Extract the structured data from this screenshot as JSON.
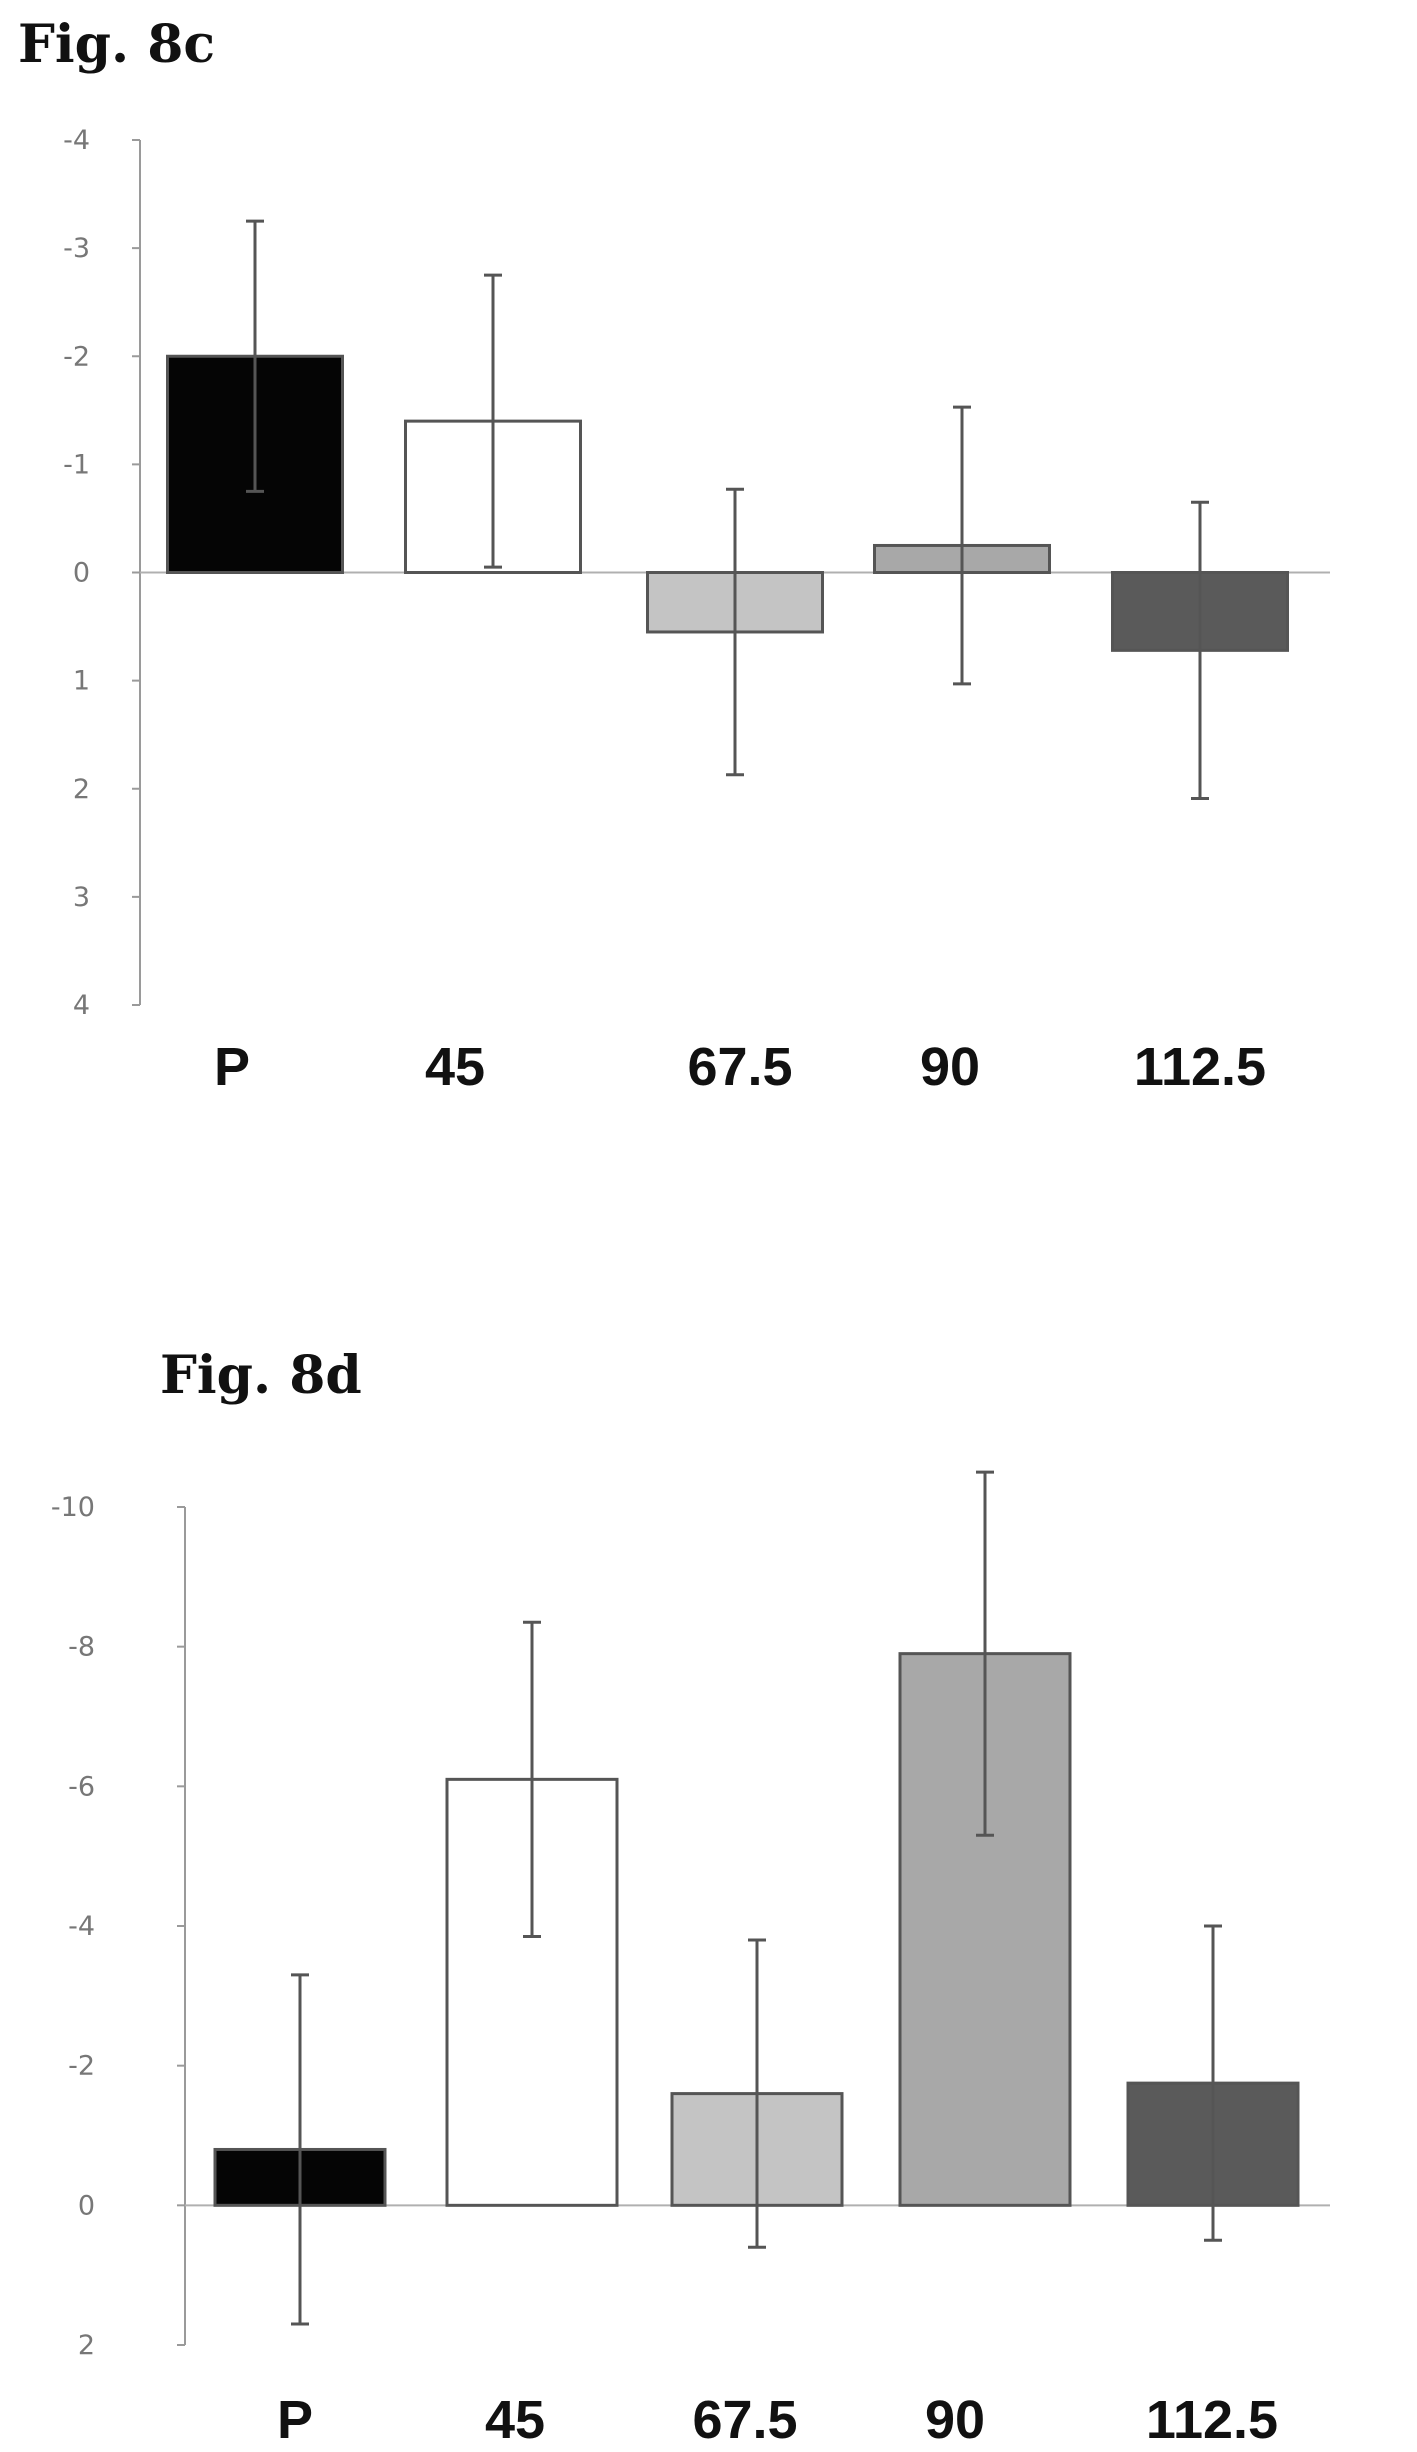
{
  "chart_data": [
    {
      "type": "bar",
      "title": "Fig. 8c",
      "categories": [
        "P",
        "45",
        "67.5",
        "90",
        "112.5"
      ],
      "values": [
        -2.0,
        -1.4,
        0.55,
        -0.25,
        0.72
      ],
      "error": [
        1.25,
        1.35,
        1.32,
        1.28,
        1.37
      ],
      "y_ticks": [
        "-4",
        "-3",
        "-2",
        "-1",
        "0",
        "1",
        "2",
        "3",
        "4"
      ],
      "ylim": [
        -4,
        4
      ],
      "y_inverted": true,
      "xlabel": "",
      "ylabel": "",
      "grid": false,
      "colors": [
        "#050505",
        "#ffffff",
        "#c4c4c4",
        "#a8a8a8",
        "#5a5a5a"
      ]
    },
    {
      "type": "bar",
      "title": "Fig. 8d",
      "categories": [
        "P",
        "45",
        "67.5",
        "90",
        "112.5"
      ],
      "values": [
        -0.8,
        -6.1,
        -1.6,
        -7.9,
        -1.75
      ],
      "error": [
        2.5,
        2.25,
        2.2,
        2.6,
        2.25
      ],
      "y_ticks": [
        "-10",
        "-8",
        "-6",
        "-4",
        "-2",
        "0",
        "2"
      ],
      "ylim": [
        -10,
        2
      ],
      "y_inverted": true,
      "xlabel": "",
      "ylabel": "",
      "grid": false,
      "colors": [
        "#050505",
        "#ffffff",
        "#c4c4c4",
        "#a8a8a8",
        "#5a5a5a"
      ]
    }
  ]
}
